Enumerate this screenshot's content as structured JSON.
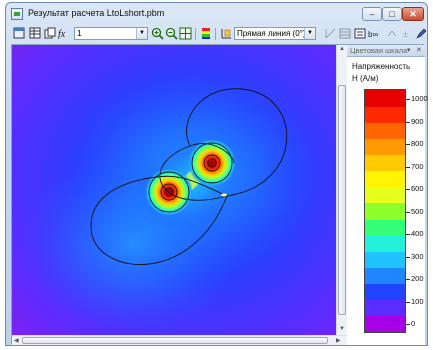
{
  "window": {
    "title": "Результат расчета LtoLshort.pbm",
    "controls": {
      "minimize": "–",
      "maximize": "□",
      "close": "✕"
    }
  },
  "toolbar": {
    "icons": [
      "window-icon",
      "table-icon",
      "copy-icon",
      "formula-icon"
    ],
    "time_combo_value": "1",
    "zoom_icons": [
      "zoom-in-icon",
      "zoom-out-icon",
      "zoom-fit-icon"
    ],
    "palette_icon": "palette-icon",
    "line_icon": "line-icon",
    "line_combo_value": "Прямая линия (0°)",
    "right_icons": [
      "line-tool-icon",
      "grid-icon",
      "settings-icon",
      "chart-icon",
      "chart-disabled-icon",
      "sign-icon"
    ]
  },
  "legend_panel": {
    "header": "Цветовая шкала",
    "quantity": "Напряженность",
    "unit": "H (A/м)",
    "colors": [
      "#a600e6",
      "#5b2cff",
      "#2244ff",
      "#1f86ff",
      "#21c3ff",
      "#22f0d9",
      "#35ff78",
      "#8cff2d",
      "#e8ff1e",
      "#fff500",
      "#ffcb00",
      "#ff9a00",
      "#ff6600",
      "#ff2a00",
      "#e60000"
    ],
    "ticks": [
      "1000",
      "900",
      "800",
      "700",
      "600",
      "500",
      "400",
      "300",
      "200",
      "100",
      "0"
    ]
  }
}
